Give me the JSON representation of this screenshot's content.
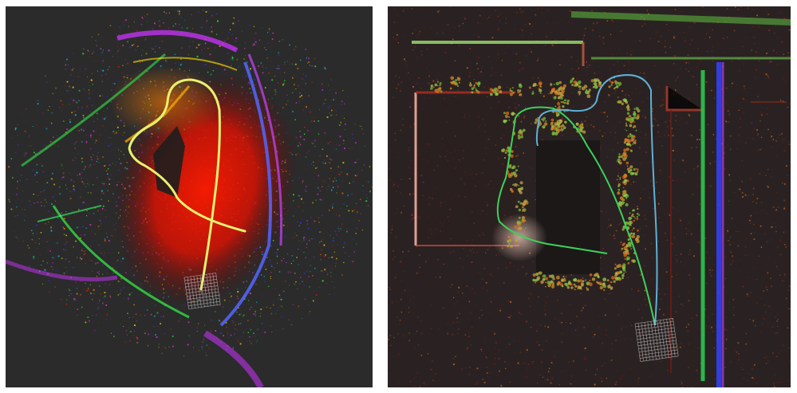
{
  "panels": [
    {
      "id": "left",
      "content": "lidar-point-cloud-map",
      "palette": [
        "#ff1a00",
        "#ff8000",
        "#ffe600",
        "#33ff33",
        "#00d9ff",
        "#3333ff",
        "#cc33ff",
        "#ff33cc"
      ],
      "trajectory_color": "#e8f070",
      "grid_color": "#cfcfcf"
    },
    {
      "id": "right",
      "content": "lidar-point-cloud-map",
      "palette": [
        "#7a1a10",
        "#b03020",
        "#e06a1a",
        "#8fd14f",
        "#33ff66",
        "#00e0ff",
        "#3344ff",
        "#cc44ff"
      ],
      "trajectory_colors": [
        "#3cd25a",
        "#5fb0d8"
      ],
      "grid_color": "#d0d0d0"
    }
  ]
}
